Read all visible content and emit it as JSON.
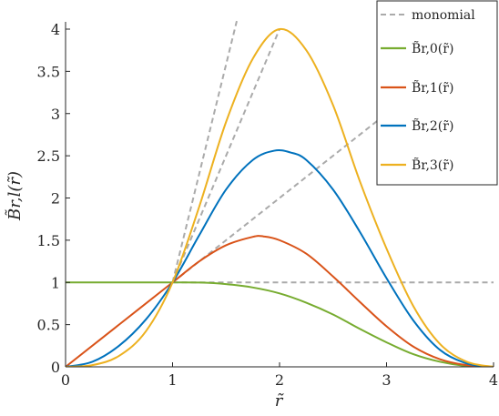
{
  "chart_data": {
    "type": "line",
    "xlabel": "r̃",
    "ylabel": "B̃r,l(r̃)",
    "xlim": [
      0,
      4
    ],
    "ylim": [
      0,
      4
    ],
    "xticks": [
      "0",
      "1",
      "2",
      "3",
      "4"
    ],
    "yticks": [
      "0",
      "0.5",
      "1",
      "1.5",
      "2",
      "2.5",
      "3",
      "3.5",
      "4"
    ],
    "grid": false,
    "legend_placement": "top-right",
    "series": [
      {
        "name": "B̃r,0(r̃)",
        "color": "#77AC30",
        "x": [
          0,
          0.5,
          1,
          1.25,
          1.5,
          1.75,
          2,
          2.25,
          2.5,
          2.75,
          3,
          3.25,
          3.5,
          3.75,
          4
        ],
        "y": [
          1,
          1,
          1,
          0.998,
          0.98,
          0.94,
          0.87,
          0.76,
          0.62,
          0.45,
          0.29,
          0.15,
          0.06,
          0.01,
          0
        ]
      },
      {
        "name": "B̃r,1(r̃)",
        "color": "#D95319",
        "x": [
          0,
          0.5,
          1,
          1.25,
          1.5,
          1.75,
          1.85,
          2,
          2.25,
          2.5,
          2.75,
          3,
          3.25,
          3.5,
          3.75,
          4
        ],
        "y": [
          0,
          0.5,
          1,
          1.25,
          1.44,
          1.54,
          1.545,
          1.5,
          1.34,
          1.07,
          0.77,
          0.48,
          0.24,
          0.09,
          0.02,
          0
        ]
      },
      {
        "name": "B̃r,2(r̃)",
        "color": "#0072BD",
        "x": [
          0,
          0.25,
          0.5,
          0.75,
          1,
          1.25,
          1.5,
          1.75,
          1.95,
          2.1,
          2.25,
          2.5,
          2.75,
          3,
          3.25,
          3.5,
          3.75,
          4
        ],
        "y": [
          0,
          0.06,
          0.25,
          0.56,
          1,
          1.56,
          2.1,
          2.45,
          2.56,
          2.54,
          2.45,
          2.1,
          1.6,
          1.05,
          0.55,
          0.2,
          0.04,
          0
        ]
      },
      {
        "name": "B̃r,3(r̃)",
        "color": "#EDB120",
        "x": [
          0,
          0.25,
          0.5,
          0.75,
          1,
          1.25,
          1.5,
          1.75,
          2,
          2.25,
          2.5,
          2.75,
          3,
          3.25,
          3.5,
          3.75,
          4
        ],
        "y": [
          0,
          0.02,
          0.13,
          0.42,
          1,
          1.9,
          2.9,
          3.65,
          4,
          3.75,
          3.1,
          2.2,
          1.4,
          0.72,
          0.27,
          0.06,
          0
        ]
      },
      {
        "name": "monomial",
        "color": "#AAAAAA",
        "dashed": true,
        "lines": [
          {
            "x": [
              1,
              4
            ],
            "y": [
              1,
              1
            ]
          },
          {
            "x": [
              1,
              3
            ],
            "y": [
              1,
              3
            ]
          },
          {
            "x": [
              1,
              2
            ],
            "y": [
              1,
              4
            ]
          },
          {
            "x": [
              1,
              1.6
            ],
            "y": [
              1,
              4.096
            ]
          }
        ]
      }
    ]
  }
}
